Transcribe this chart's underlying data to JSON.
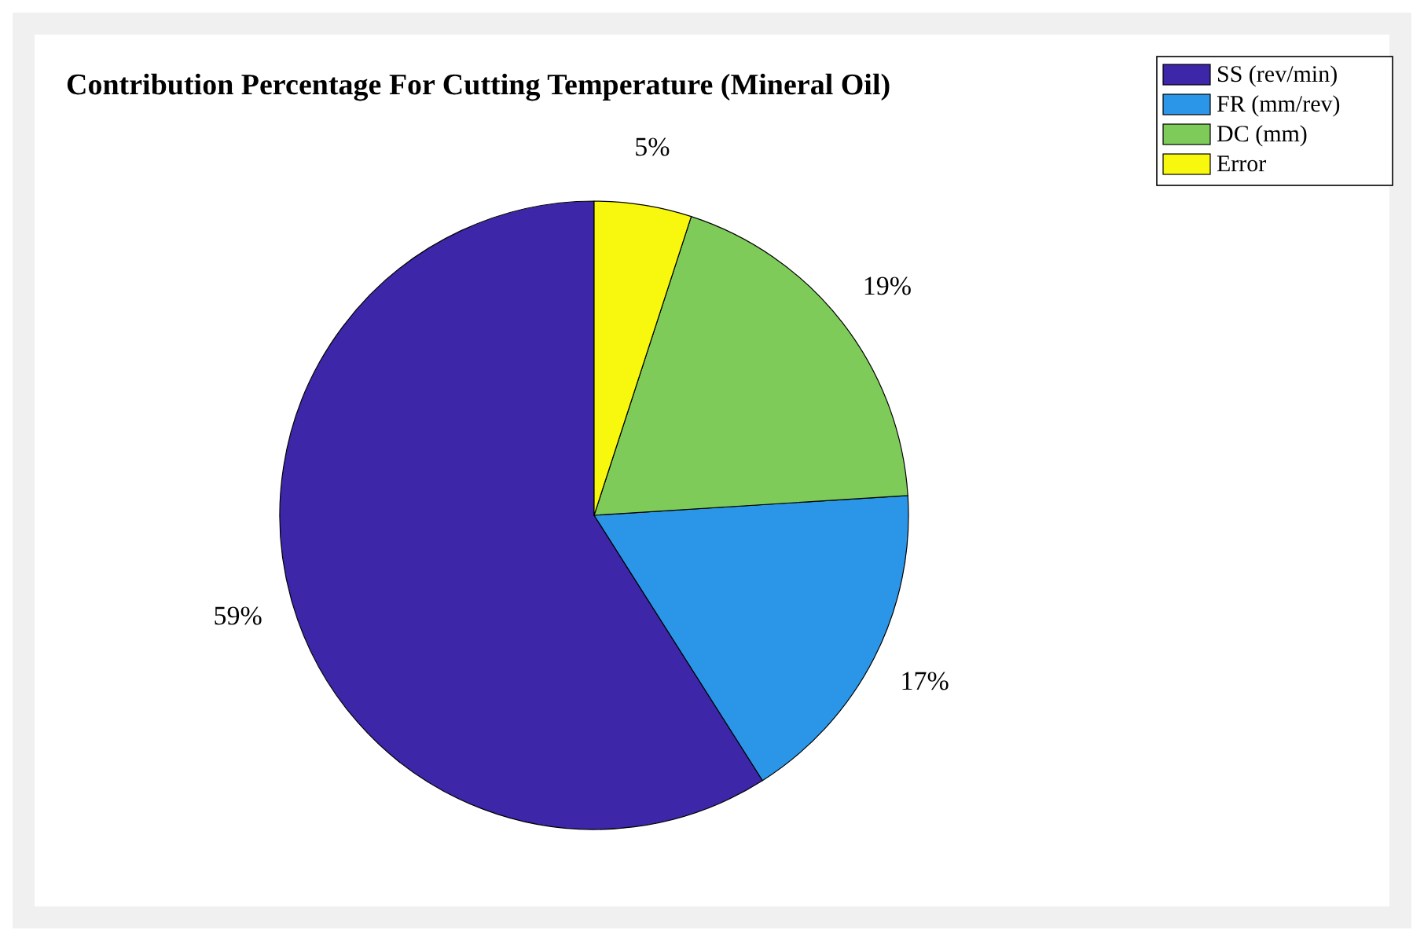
{
  "chart_data": {
    "type": "pie",
    "title": "Contribution Percentage For Cutting Temperature (Mineral Oil)",
    "categories": [
      "SS (rev/min)",
      "FR (mm/rev)",
      "DC (mm)",
      "Error"
    ],
    "values": [
      59,
      17,
      19,
      5
    ],
    "value_labels": [
      "59%",
      "17%",
      "19%",
      "5%"
    ],
    "colors": [
      "#3d26a8",
      "#2b96e8",
      "#7ecb5a",
      "#f8f80f"
    ],
    "legend": "top right"
  }
}
